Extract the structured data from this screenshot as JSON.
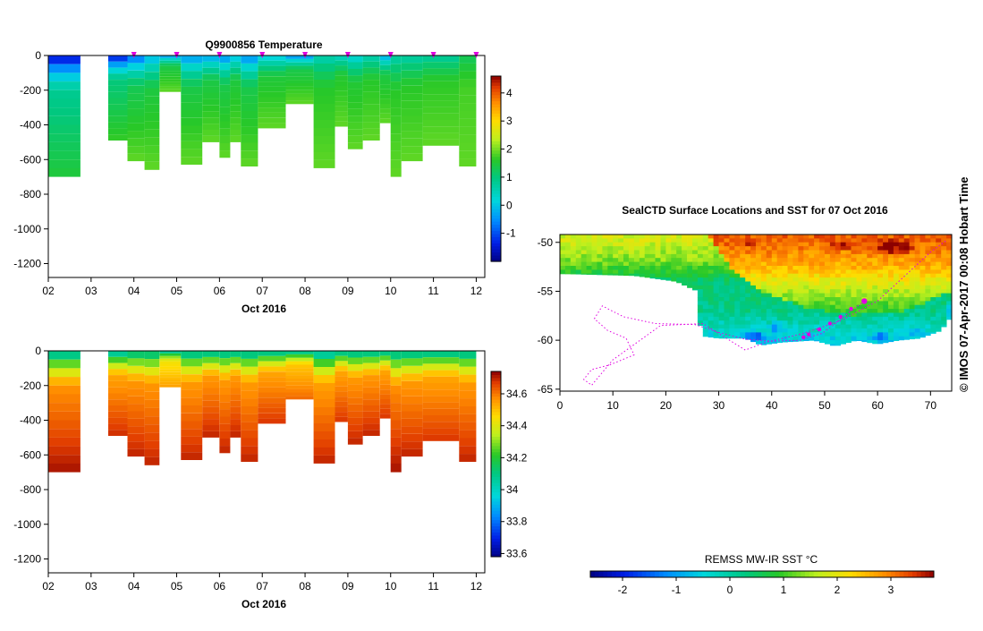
{
  "copyright": "© IMOS 07-Apr-2017 00:08 Hobart Time",
  "colors": {
    "track": "#e000e0",
    "land": "#ffffff",
    "axis": "#000000"
  },
  "chart_data": [
    {
      "type": "heatmap",
      "title": "Q9900856  Temperature",
      "xlabel": "Oct 2016",
      "ylabel": "",
      "x_tick_labels": [
        "02",
        "03",
        "04",
        "05",
        "06",
        "07",
        "08",
        "09",
        "10",
        "11",
        "12"
      ],
      "x_range": [
        2.0,
        12.2
      ],
      "y_tick_labels": [
        "0",
        "-200",
        "-400",
        "-600",
        "-800",
        "-1000",
        "-1200"
      ],
      "ylim": [
        -1280,
        0
      ],
      "colorbar": {
        "tick_labels": [
          "-1",
          "0",
          "1",
          "2",
          "3",
          "4"
        ],
        "range": [
          -2.0,
          4.6
        ]
      },
      "profile_marker_days": [
        4.0,
        5.0,
        6.0,
        7.0,
        8.0,
        9.0,
        10.0,
        11.0,
        12.0
      ],
      "profiles": [
        {
          "x0": 2.0,
          "x1": 2.75,
          "depth": -700,
          "surface": -1.9,
          "deep": 1.5
        },
        {
          "x0": 3.4,
          "x1": 3.85,
          "depth": -490,
          "surface": -1.8,
          "deep": 1.7
        },
        {
          "x0": 3.85,
          "x1": 4.25,
          "depth": -610,
          "surface": -1.1,
          "deep": 1.9
        },
        {
          "x0": 4.25,
          "x1": 4.6,
          "depth": -660,
          "surface": -0.4,
          "deep": 1.9
        },
        {
          "x0": 4.6,
          "x1": 5.1,
          "depth": -210,
          "surface": -0.7,
          "deep": 1.9
        },
        {
          "x0": 5.1,
          "x1": 5.6,
          "depth": -630,
          "surface": -0.7,
          "deep": 1.9
        },
        {
          "x0": 5.6,
          "x1": 6.0,
          "depth": -500,
          "surface": -0.6,
          "deep": 1.9
        },
        {
          "x0": 6.0,
          "x1": 6.25,
          "depth": -590,
          "surface": -0.8,
          "deep": 1.9
        },
        {
          "x0": 6.25,
          "x1": 6.5,
          "depth": -500,
          "surface": -0.3,
          "deep": 1.9
        },
        {
          "x0": 6.5,
          "x1": 6.9,
          "depth": -640,
          "surface": -0.8,
          "deep": 1.9
        },
        {
          "x0": 6.9,
          "x1": 7.55,
          "depth": -420,
          "surface": -0.2,
          "deep": 1.9
        },
        {
          "x0": 7.55,
          "x1": 8.2,
          "depth": -280,
          "surface": -0.8,
          "deep": 1.9
        },
        {
          "x0": 8.2,
          "x1": 8.7,
          "depth": -650,
          "surface": 0.4,
          "deep": 1.9
        },
        {
          "x0": 8.7,
          "x1": 9.0,
          "depth": -410,
          "surface": 0.2,
          "deep": 1.9
        },
        {
          "x0": 9.0,
          "x1": 9.35,
          "depth": -540,
          "surface": 0.0,
          "deep": 1.9
        },
        {
          "x0": 9.35,
          "x1": 9.75,
          "depth": -490,
          "surface": 0.4,
          "deep": 1.9
        },
        {
          "x0": 9.75,
          "x1": 10.0,
          "depth": -390,
          "surface": -0.5,
          "deep": 1.9
        },
        {
          "x0": 10.0,
          "x1": 10.25,
          "depth": -700,
          "surface": 0.5,
          "deep": 1.9
        },
        {
          "x0": 10.25,
          "x1": 10.75,
          "depth": -610,
          "surface": 0.5,
          "deep": 1.9
        },
        {
          "x0": 10.75,
          "x1": 11.6,
          "depth": -520,
          "surface": 0.6,
          "deep": 1.9
        },
        {
          "x0": 11.6,
          "x1": 12.0,
          "depth": -640,
          "surface": 1.2,
          "deep": 1.9
        }
      ]
    },
    {
      "type": "heatmap",
      "title": "",
      "xlabel": "Oct 2016",
      "ylabel": "",
      "x_tick_labels": [
        "02",
        "03",
        "04",
        "05",
        "06",
        "07",
        "08",
        "09",
        "10",
        "11",
        "12"
      ],
      "x_range": [
        2.0,
        12.2
      ],
      "y_tick_labels": [
        "0",
        "-200",
        "-400",
        "-600",
        "-800",
        "-1000",
        "-1200"
      ],
      "ylim": [
        -1280,
        0
      ],
      "colorbar": {
        "tick_labels": [
          "33.6",
          "33.8",
          "34",
          "34.2",
          "34.4",
          "34.6"
        ],
        "range": [
          33.58,
          34.74
        ]
      },
      "profiles": [
        {
          "x0": 2.0,
          "x1": 2.75,
          "depth": -700,
          "surface": 33.95,
          "deep": 34.72
        },
        {
          "x0": 3.4,
          "x1": 3.85,
          "depth": -490,
          "surface": 33.93,
          "deep": 34.69
        },
        {
          "x0": 3.85,
          "x1": 4.25,
          "depth": -610,
          "surface": 34.0,
          "deep": 34.7
        },
        {
          "x0": 4.25,
          "x1": 4.6,
          "depth": -660,
          "surface": 34.0,
          "deep": 34.7
        },
        {
          "x0": 4.6,
          "x1": 5.1,
          "depth": -210,
          "surface": 33.97,
          "deep": 34.55
        },
        {
          "x0": 5.1,
          "x1": 5.6,
          "depth": -630,
          "surface": 33.97,
          "deep": 34.7
        },
        {
          "x0": 5.6,
          "x1": 6.0,
          "depth": -500,
          "surface": 33.97,
          "deep": 34.7
        },
        {
          "x0": 6.0,
          "x1": 6.25,
          "depth": -590,
          "surface": 33.97,
          "deep": 34.7
        },
        {
          "x0": 6.25,
          "x1": 6.5,
          "depth": -500,
          "surface": 33.97,
          "deep": 34.7
        },
        {
          "x0": 6.5,
          "x1": 6.9,
          "depth": -640,
          "surface": 33.97,
          "deep": 34.7
        },
        {
          "x0": 6.9,
          "x1": 7.55,
          "depth": -420,
          "surface": 33.97,
          "deep": 34.68
        },
        {
          "x0": 7.55,
          "x1": 8.2,
          "depth": -280,
          "surface": 33.97,
          "deep": 34.62
        },
        {
          "x0": 8.2,
          "x1": 8.7,
          "depth": -650,
          "surface": 33.92,
          "deep": 34.7
        },
        {
          "x0": 8.7,
          "x1": 9.0,
          "depth": -410,
          "surface": 33.97,
          "deep": 34.68
        },
        {
          "x0": 9.0,
          "x1": 9.35,
          "depth": -540,
          "surface": 33.97,
          "deep": 34.7
        },
        {
          "x0": 9.35,
          "x1": 9.75,
          "depth": -490,
          "surface": 33.97,
          "deep": 34.7
        },
        {
          "x0": 9.75,
          "x1": 10.0,
          "depth": -390,
          "surface": 33.97,
          "deep": 34.68
        },
        {
          "x0": 10.0,
          "x1": 10.25,
          "depth": -700,
          "surface": 33.97,
          "deep": 34.72
        },
        {
          "x0": 10.25,
          "x1": 10.75,
          "depth": -610,
          "surface": 33.97,
          "deep": 34.7
        },
        {
          "x0": 10.75,
          "x1": 11.6,
          "depth": -520,
          "surface": 33.97,
          "deep": 34.68
        },
        {
          "x0": 11.6,
          "x1": 12.0,
          "depth": -640,
          "surface": 33.97,
          "deep": 34.7
        }
      ]
    },
    {
      "type": "heatmap",
      "title": "SealCTD Surface Locations and SST for 07 Oct 2016",
      "xlabel": "",
      "ylabel": "",
      "xlim": [
        0,
        74
      ],
      "ylim": [
        -65,
        -49
      ],
      "x_tick_labels": [
        "0",
        "10",
        "20",
        "30",
        "40",
        "50",
        "60",
        "70"
      ],
      "y_tick_labels": [
        "-50",
        "-55",
        "-60",
        "-65"
      ],
      "colorbar": {
        "title": "REMSS MW-IR SST °C",
        "tick_labels": [
          "-2",
          "-1",
          "0",
          "1",
          "2",
          "3"
        ],
        "range": [
          -2.6,
          3.8
        ]
      },
      "sst_data_southern_boundary": [
        [
          0,
          -53.2
        ],
        [
          14,
          -53.4
        ],
        [
          22,
          -54.0
        ],
        [
          26,
          -55.0
        ],
        [
          25.5,
          -56.5
        ],
        [
          26.5,
          -58.5
        ],
        [
          26,
          -59.5
        ],
        [
          30,
          -59.8
        ],
        [
          35,
          -59.8
        ],
        [
          38,
          -60.5
        ],
        [
          42,
          -60.2
        ],
        [
          48,
          -60.0
        ],
        [
          52,
          -60.6
        ],
        [
          56,
          -60.0
        ],
        [
          60,
          -60.4
        ],
        [
          64,
          -60.0
        ],
        [
          68,
          -59.8
        ],
        [
          72,
          -59.0
        ],
        [
          74,
          -57.5
        ]
      ],
      "sst_gradient": [
        {
          "lat": -49.8,
          "sst": 1.8
        },
        {
          "lat": -52.0,
          "sst": 1.3
        },
        {
          "lat": -54.0,
          "sst": 0.4
        },
        {
          "lat": -57.0,
          "sst": 0.2
        },
        {
          "lat": -60.5,
          "sst": -0.7
        }
      ],
      "sst_warm_gradient": [
        {
          "lat": -49.8,
          "sst": 3.2
        },
        {
          "lat": -52.5,
          "sst": 2.6
        },
        {
          "lat": -55.0,
          "sst": 1.6
        },
        {
          "lat": -58.0,
          "sst": 0.6
        }
      ],
      "warm_region_west_edge": [
        [
          28,
          -49.2
        ],
        [
          32,
          -52.5
        ],
        [
          38,
          -55.0
        ],
        [
          45,
          -56.5
        ],
        [
          55,
          -57.5
        ],
        [
          65,
          -57.0
        ],
        [
          74,
          -55.0
        ]
      ],
      "cold_patches": [
        {
          "lon": 36.5,
          "lat": -59.6,
          "r_lon": 2.6,
          "r_lat": 0.7,
          "sst": -1.6
        },
        {
          "lon": 41.0,
          "lat": -58.8,
          "r_lon": 2.0,
          "r_lat": 0.8,
          "sst": -1.0
        },
        {
          "lon": 60.5,
          "lat": -59.7,
          "r_lon": 1.8,
          "r_lat": 0.6,
          "sst": -1.5
        },
        {
          "lon": 67.0,
          "lat": -59.2,
          "r_lon": 2.0,
          "r_lat": 0.6,
          "sst": -0.8
        },
        {
          "lon": 73.5,
          "lat": -57.0,
          "r_lon": 0.7,
          "r_lat": 1.2,
          "sst": -0.8
        }
      ],
      "hot_patches": [
        {
          "lon": 63.0,
          "lat": -50.5,
          "r_lon": 5.0,
          "r_lat": 0.9,
          "sst": 3.8
        },
        {
          "lon": 35.0,
          "lat": -50.0,
          "r_lon": 2.5,
          "r_lat": 0.4,
          "sst": 3.5
        },
        {
          "lon": 53.0,
          "lat": -50.3,
          "r_lon": 3.0,
          "r_lat": 0.6,
          "sst": 3.6
        }
      ],
      "track_lon": [
        57.5,
        54.5,
        52.0,
        49.5,
        47.0,
        45.5,
        40.0,
        35.0,
        30.0,
        25.5,
        18.0,
        12.0,
        8.0,
        6.5,
        9.0,
        12.5,
        14.0,
        9.5,
        6.0,
        4.5,
        6.0,
        10.0,
        19.0,
        27.0,
        35.0,
        39.0,
        46.0,
        53.0,
        60.0,
        66.0,
        70.0,
        73.0
      ],
      "track_lat": [
        -56.0,
        -57.2,
        -58.3,
        -59.3,
        -59.7,
        -60.0,
        -60.1,
        -59.9,
        -59.2,
        -58.4,
        -58.3,
        -57.6,
        -56.5,
        -57.8,
        -59.0,
        -59.8,
        -61.5,
        -62.5,
        -63.0,
        -64.0,
        -64.6,
        -62.0,
        -58.5,
        -58.3,
        -61.0,
        -60.2,
        -59.3,
        -58.0,
        -56.0,
        -53.0,
        -51.0,
        -49.8
      ],
      "current_locations_lon": [
        57.5,
        55.0,
        53.0,
        51.0,
        49.0,
        47.0,
        46.0
      ],
      "current_locations_lat": [
        -56.0,
        -56.8,
        -57.6,
        -58.3,
        -58.9,
        -59.4,
        -59.7
      ]
    }
  ]
}
